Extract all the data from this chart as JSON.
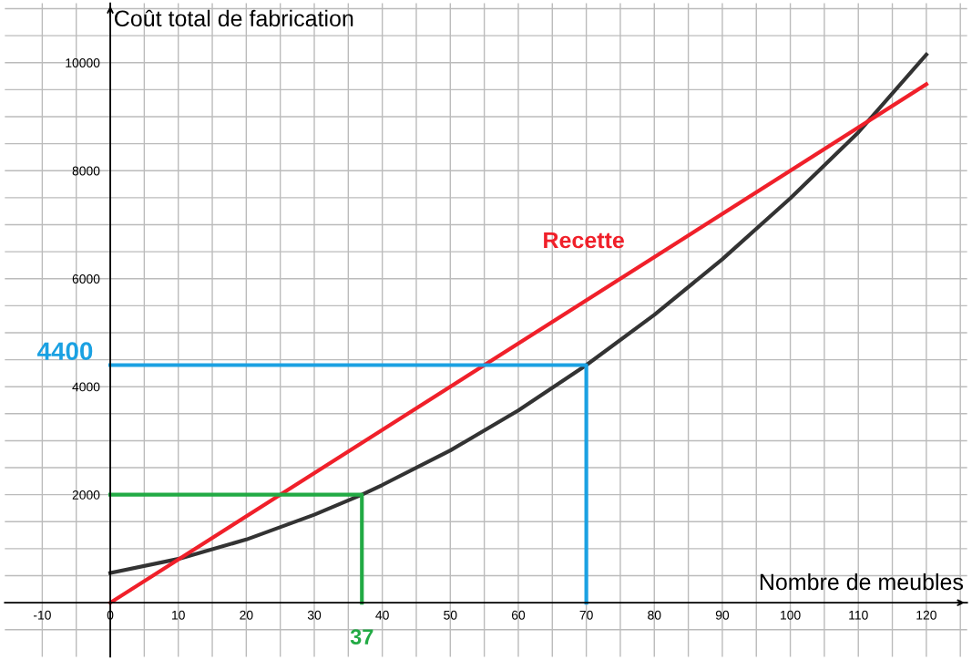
{
  "chart_data": {
    "type": "line",
    "ylabel": "Coût total de fabrication",
    "xlabel": "Nombre de meubles",
    "xlim": [
      -15.5,
      126
    ],
    "ylim": [
      -1000,
      11100
    ],
    "xticks": [
      -10,
      {
        "value": -5,
        "label": null
      },
      0,
      {
        "value": 5,
        "label": null
      },
      10,
      {
        "value": 15,
        "label": null
      },
      20,
      {
        "value": 25,
        "label": null
      },
      30,
      {
        "value": 35,
        "label": null
      },
      40,
      {
        "value": 45,
        "label": null
      },
      50,
      {
        "value": 55,
        "label": null
      },
      60,
      {
        "value": 65,
        "label": null
      },
      70,
      {
        "value": 75,
        "label": null
      },
      80,
      {
        "value": 85,
        "label": null
      },
      90,
      {
        "value": 95,
        "label": null
      },
      100,
      {
        "value": 105,
        "label": null
      },
      110,
      {
        "value": 115,
        "label": null
      },
      120,
      {
        "value": 125,
        "label": null
      }
    ],
    "yticks": [
      {
        "value": -500,
        "label": null
      },
      {
        "value": 500,
        "label": null
      },
      {
        "value": 1000,
        "label": null
      },
      {
        "value": 1500,
        "label": null
      },
      2000,
      {
        "value": 2500,
        "label": null
      },
      {
        "value": 3000,
        "label": null
      },
      {
        "value": 3500,
        "label": null
      },
      4000,
      {
        "value": 4500,
        "label": null
      },
      {
        "value": 5000,
        "label": null
      },
      {
        "value": 5500,
        "label": null
      },
      6000,
      {
        "value": 6500,
        "label": null
      },
      {
        "value": 7000,
        "label": null
      },
      {
        "value": 7500,
        "label": null
      },
      8000,
      {
        "value": 8500,
        "label": null
      },
      {
        "value": 9000,
        "label": null
      },
      {
        "value": 9500,
        "label": null
      },
      10000,
      {
        "value": 10500,
        "label": null
      },
      {
        "value": 11000,
        "label": null
      }
    ],
    "grid": true,
    "marker": "none",
    "line_style": "solid",
    "series": [
      {
        "color": "#333333",
        "x": [
          0,
          10,
          20,
          30,
          37,
          40,
          50,
          60,
          70,
          80,
          90,
          100,
          110,
          120
        ],
        "values": [
          550,
          810,
          1170,
          1630,
          2000,
          2180,
          2820,
          3560,
          4400,
          5330,
          6360,
          7490,
          8710,
          10150
        ]
      },
      {
        "name": "Recette",
        "color": "#f0202a",
        "x": [
          0,
          120
        ],
        "values": [
          0,
          9600
        ]
      },
      {
        "color": "#1ba1e2",
        "x": [
          0,
          70,
          70
        ],
        "values": [
          4400,
          4400,
          0
        ]
      },
      {
        "color": "#22aa44",
        "x": [
          0,
          37,
          37
        ],
        "values": [
          2000,
          2000,
          0
        ]
      }
    ],
    "annotations": [
      {
        "text": "4400",
        "x": 0,
        "y": 4400
      },
      {
        "text": "37",
        "x": 37,
        "y": 0
      }
    ]
  }
}
